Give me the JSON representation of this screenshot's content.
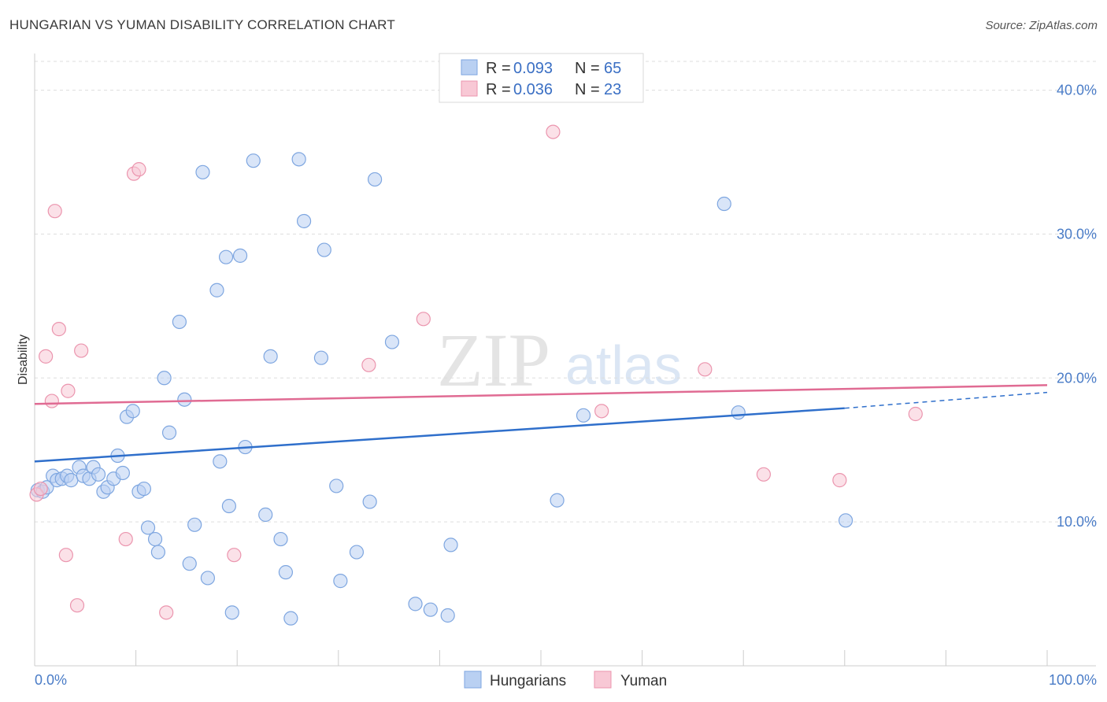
{
  "title": "HUNGARIAN VS YUMAN DISABILITY CORRELATION CHART",
  "source": "Source: ZipAtlas.com",
  "watermark": {
    "zip": "ZIP",
    "atlas": "atlas"
  },
  "legend": {
    "rows": [
      {
        "r_label": "R = ",
        "r_value": "0.093",
        "n_label": "N = ",
        "n_value": "65"
      },
      {
        "r_label": "R = ",
        "r_value": "0.036",
        "n_label": "N = ",
        "n_value": "23"
      }
    ]
  },
  "colors": {
    "hungarians_fill": "#b9d0f2",
    "hungarians_stroke": "#7ea6e0",
    "hungarians_line": "#2f6fcb",
    "yuman_fill": "#f8c8d5",
    "yuman_stroke": "#eb95ae",
    "yuman_line": "#e06b93"
  },
  "chart_data": {
    "type": "scatter",
    "title": "HUNGARIAN VS YUMAN DISABILITY CORRELATION CHART",
    "xlabel": "",
    "ylabel": "Disability",
    "xlim": [
      0,
      100
    ],
    "ylim": [
      0,
      42
    ],
    "x_tick_labels": [
      "0.0%",
      "100.0%"
    ],
    "y_ticks": [
      10,
      20,
      30,
      40
    ],
    "y_tick_labels": [
      "10.0%",
      "20.0%",
      "30.0%",
      "40.0%"
    ],
    "legend_entries": [
      "Hungarians",
      "Yuman"
    ],
    "series": [
      {
        "name": "Hungarians",
        "r": 0.093,
        "n": 65,
        "trend": {
          "x0": 0,
          "y0": 14.2,
          "x1": 80,
          "y1": 17.9,
          "dash_to": 100,
          "dash_y": 19.0
        },
        "points": [
          [
            0.3,
            12.2
          ],
          [
            0.8,
            12.1
          ],
          [
            1.2,
            12.4
          ],
          [
            1.8,
            13.2
          ],
          [
            2.2,
            12.9
          ],
          [
            2.7,
            13.0
          ],
          [
            3.2,
            13.2
          ],
          [
            3.6,
            12.9
          ],
          [
            4.4,
            13.8
          ],
          [
            4.8,
            13.2
          ],
          [
            5.4,
            13.0
          ],
          [
            5.8,
            13.8
          ],
          [
            6.3,
            13.3
          ],
          [
            6.8,
            12.1
          ],
          [
            7.2,
            12.4
          ],
          [
            7.8,
            13.0
          ],
          [
            8.2,
            14.6
          ],
          [
            8.7,
            13.4
          ],
          [
            9.1,
            17.3
          ],
          [
            9.7,
            17.7
          ],
          [
            10.3,
            12.1
          ],
          [
            10.8,
            12.3
          ],
          [
            11.2,
            9.6
          ],
          [
            11.9,
            8.8
          ],
          [
            12.2,
            7.9
          ],
          [
            12.8,
            20.0
          ],
          [
            13.3,
            16.2
          ],
          [
            14.3,
            23.9
          ],
          [
            14.8,
            18.5
          ],
          [
            15.3,
            7.1
          ],
          [
            15.8,
            9.8
          ],
          [
            16.6,
            34.3
          ],
          [
            17.1,
            6.1
          ],
          [
            18.0,
            26.1
          ],
          [
            18.3,
            14.2
          ],
          [
            18.9,
            28.4
          ],
          [
            19.5,
            3.7
          ],
          [
            19.2,
            11.1
          ],
          [
            20.3,
            28.5
          ],
          [
            20.8,
            15.2
          ],
          [
            21.6,
            35.1
          ],
          [
            22.8,
            10.5
          ],
          [
            23.3,
            21.5
          ],
          [
            24.3,
            8.8
          ],
          [
            24.8,
            6.5
          ],
          [
            25.3,
            3.3
          ],
          [
            26.1,
            35.2
          ],
          [
            26.6,
            30.9
          ],
          [
            28.3,
            21.4
          ],
          [
            28.6,
            28.9
          ],
          [
            29.8,
            12.5
          ],
          [
            30.2,
            5.9
          ],
          [
            31.8,
            7.9
          ],
          [
            33.1,
            11.4
          ],
          [
            33.6,
            33.8
          ],
          [
            35.3,
            22.5
          ],
          [
            37.6,
            4.3
          ],
          [
            39.1,
            3.9
          ],
          [
            40.8,
            3.5
          ],
          [
            41.1,
            8.4
          ],
          [
            51.6,
            11.5
          ],
          [
            54.2,
            17.4
          ],
          [
            68.1,
            32.1
          ],
          [
            69.5,
            17.6
          ],
          [
            80.1,
            10.1
          ]
        ]
      },
      {
        "name": "Yuman",
        "r": 0.036,
        "n": 23,
        "trend": {
          "x0": 0,
          "y0": 18.2,
          "x1": 100,
          "y1": 19.5
        },
        "points": [
          [
            0.2,
            11.9
          ],
          [
            1.1,
            21.5
          ],
          [
            1.7,
            18.4
          ],
          [
            2.0,
            31.6
          ],
          [
            2.4,
            23.4
          ],
          [
            3.1,
            7.7
          ],
          [
            3.3,
            19.1
          ],
          [
            4.2,
            4.2
          ],
          [
            4.6,
            21.9
          ],
          [
            9.0,
            8.8
          ],
          [
            9.8,
            34.2
          ],
          [
            10.3,
            34.5
          ],
          [
            13.0,
            3.7
          ],
          [
            19.7,
            7.7
          ],
          [
            33.0,
            20.9
          ],
          [
            38.4,
            24.1
          ],
          [
            51.2,
            37.1
          ],
          [
            56.0,
            17.7
          ],
          [
            66.2,
            20.6
          ],
          [
            72.0,
            13.3
          ],
          [
            79.5,
            12.9
          ],
          [
            87.0,
            17.5
          ],
          [
            0.6,
            12.3
          ]
        ]
      }
    ]
  }
}
